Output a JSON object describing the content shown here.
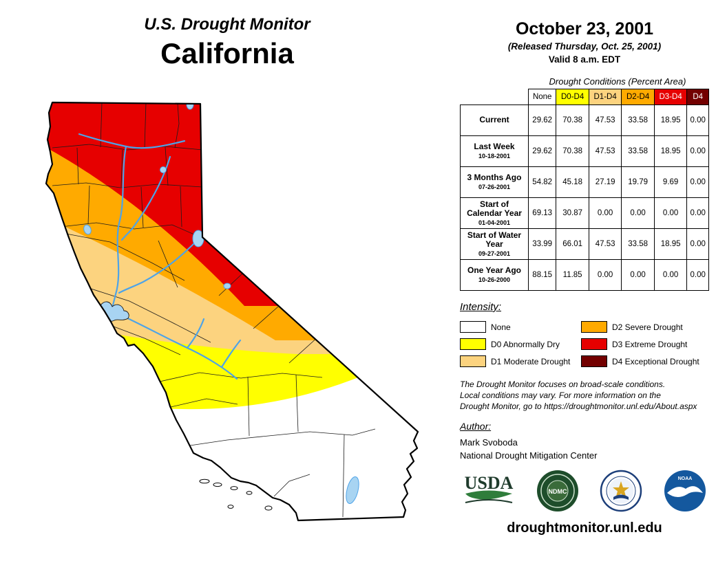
{
  "header": {
    "monitor_title": "U.S. Drought Monitor",
    "state_name": "California",
    "date": "October 23, 2001",
    "released": "(Released Thursday, Oct. 25, 2001)",
    "valid": "Valid 8 a.m. EDT"
  },
  "table": {
    "caption": "Drought Conditions (Percent Area)",
    "columns": [
      "None",
      "D0-D4",
      "D1-D4",
      "D2-D4",
      "D3-D4",
      "D4"
    ],
    "column_colors": [
      "#FFFFFF",
      "#FFFF00",
      "#FCD37F",
      "#FFAA00",
      "#E60000",
      "#730000"
    ],
    "column_text_colors": [
      "#000000",
      "#000000",
      "#000000",
      "#000000",
      "#FFFFFF",
      "#FFFFFF"
    ],
    "rows": [
      {
        "label": "Current",
        "date": "",
        "values": [
          "29.62",
          "70.38",
          "47.53",
          "33.58",
          "18.95",
          "0.00"
        ]
      },
      {
        "label": "Last Week",
        "date": "10-18-2001",
        "values": [
          "29.62",
          "70.38",
          "47.53",
          "33.58",
          "18.95",
          "0.00"
        ]
      },
      {
        "label": "3 Months Ago",
        "date": "07-26-2001",
        "values": [
          "54.82",
          "45.18",
          "27.19",
          "19.79",
          "9.69",
          "0.00"
        ]
      },
      {
        "label": "Start of Calendar Year",
        "date": "01-04-2001",
        "values": [
          "69.13",
          "30.87",
          "0.00",
          "0.00",
          "0.00",
          "0.00"
        ]
      },
      {
        "label": "Start of Water Year",
        "date": "09-27-2001",
        "values": [
          "33.99",
          "66.01",
          "47.53",
          "33.58",
          "18.95",
          "0.00"
        ]
      },
      {
        "label": "One Year Ago",
        "date": "10-26-2000",
        "values": [
          "88.15",
          "11.85",
          "0.00",
          "0.00",
          "0.00",
          "0.00"
        ]
      }
    ]
  },
  "legend": {
    "title": "Intensity:",
    "items": [
      {
        "label": "None",
        "color": "#FFFFFF"
      },
      {
        "label": "D0 Abnormally Dry",
        "color": "#FFFF00"
      },
      {
        "label": "D1 Moderate Drought",
        "color": "#FCD37F"
      },
      {
        "label": "D2 Severe Drought",
        "color": "#FFAA00"
      },
      {
        "label": "D3 Extreme Drought",
        "color": "#E60000"
      },
      {
        "label": "D4 Exceptional Drought",
        "color": "#730000"
      }
    ]
  },
  "disclaimer": {
    "lines": [
      "The Drought Monitor focuses on broad-scale conditions.",
      "Local conditions may vary. For more information on the",
      "Drought Monitor, go to https://droughtmonitor.unl.edu/About.aspx"
    ]
  },
  "author": {
    "title": "Author:",
    "name": "Mark Svoboda",
    "org": "National Drought Mitigation Center"
  },
  "logos": [
    {
      "name": "usda-logo",
      "label": "USDA"
    },
    {
      "name": "ndmc-logo",
      "label": "NDMC"
    },
    {
      "name": "doc-seal-logo",
      "label": ""
    },
    {
      "name": "noaa-logo",
      "label": "NOAA"
    }
  ],
  "footer": {
    "url": "droughtmonitor.unl.edu"
  },
  "map": {
    "colors": {
      "none": "#FFFFFF",
      "d0": "#FFFF00",
      "d1": "#FCD37F",
      "d2": "#FFAA00",
      "d3": "#E60000",
      "d4": "#730000",
      "water": "#4DA3E8",
      "lake_fill": "#A8D4F2"
    }
  }
}
